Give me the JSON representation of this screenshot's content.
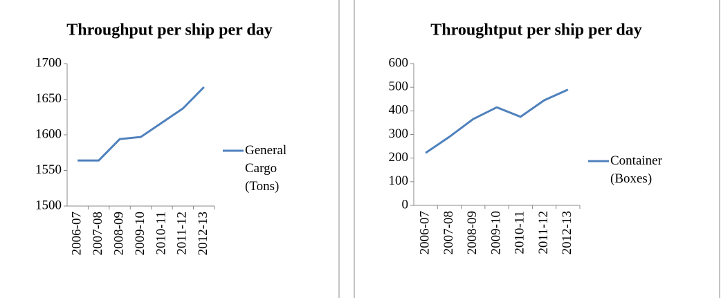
{
  "chart_data": [
    {
      "type": "line",
      "title": "Throughput per ship per day",
      "categories": [
        "2006-07",
        "2007-08",
        "2008-09",
        "2009-10",
        "2010-11",
        "2011-12",
        "2012-13"
      ],
      "series": [
        {
          "name": "General Cargo (Tons)",
          "color": "#4f81bd",
          "values": [
            1564,
            1564,
            1594,
            1597,
            1617,
            1637,
            1667
          ]
        }
      ],
      "ylim": [
        1500,
        1700
      ],
      "yticks": [
        1500,
        1550,
        1600,
        1650,
        1700
      ],
      "legend": "right"
    },
    {
      "type": "line",
      "title": "Throughtput per ship per day",
      "categories": [
        "2006-07",
        "2007-08",
        "2008-09",
        "2009-10",
        "2010-11",
        "2011-12",
        "2012-13"
      ],
      "series": [
        {
          "name": "Container (Boxes)",
          "color": "#4f81bd",
          "values": [
            222,
            290,
            365,
            415,
            375,
            445,
            490
          ]
        }
      ],
      "ylim": [
        0,
        600
      ],
      "yticks": [
        0,
        100,
        200,
        300,
        400,
        500,
        600
      ],
      "legend": "right"
    }
  ]
}
